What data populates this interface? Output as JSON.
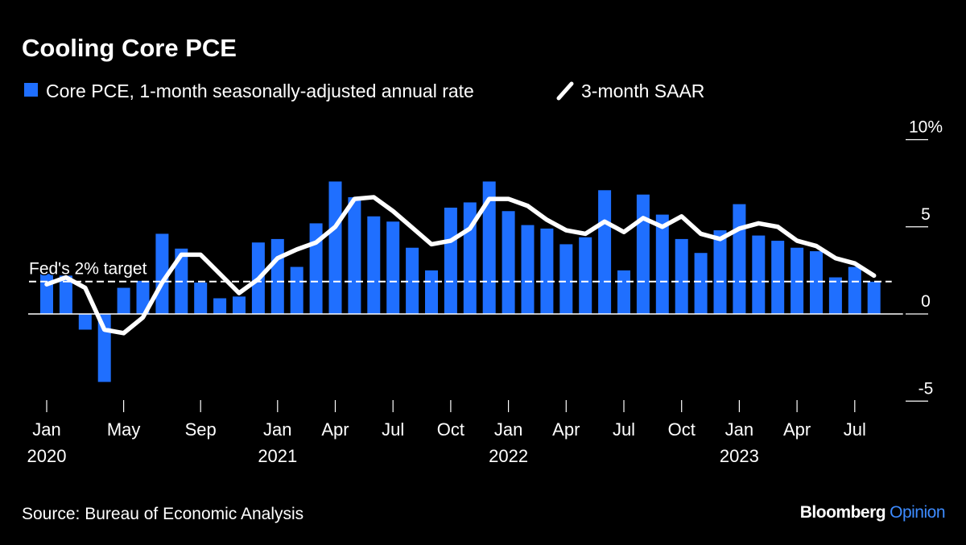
{
  "title": "Cooling Core PCE",
  "source": "Source: Bureau of Economic Analysis",
  "logo": {
    "brand": "Bloomberg",
    "product": "Opinion"
  },
  "colors": {
    "bar": "#1f6fff",
    "line": "#ffffff",
    "background": "#000000",
    "logo_accent": "#3d8bff"
  },
  "legend": [
    {
      "label": "Core PCE, 1-month seasonally-adjusted annual rate",
      "icon": "blue-square"
    },
    {
      "label": "3-month SAAR",
      "icon": "white-slash"
    }
  ],
  "chart_data": {
    "type": "bar+line",
    "title": "Cooling Core PCE",
    "legend_placement": "top-left",
    "grid": false,
    "ylim": [
      -5,
      10
    ],
    "yticks": [
      {
        "value": 10,
        "label": "10%"
      },
      {
        "value": 5,
        "label": "5"
      },
      {
        "value": 0,
        "label": "0"
      },
      {
        "value": -5,
        "label": "-5"
      }
    ],
    "xticks": [
      {
        "month_index": 0,
        "label": "Jan",
        "year": "2020"
      },
      {
        "month_index": 4,
        "label": "May",
        "year": ""
      },
      {
        "month_index": 8,
        "label": "Sep",
        "year": ""
      },
      {
        "month_index": 12,
        "label": "Jan",
        "year": "2021"
      },
      {
        "month_index": 15,
        "label": "Apr",
        "year": ""
      },
      {
        "month_index": 18,
        "label": "Jul",
        "year": ""
      },
      {
        "month_index": 21,
        "label": "Oct",
        "year": ""
      },
      {
        "month_index": 24,
        "label": "Jan",
        "year": "2022"
      },
      {
        "month_index": 27,
        "label": "Apr",
        "year": ""
      },
      {
        "month_index": 30,
        "label": "Jul",
        "year": ""
      },
      {
        "month_index": 33,
        "label": "Oct",
        "year": ""
      },
      {
        "month_index": 36,
        "label": "Jan",
        "year": "2023"
      },
      {
        "month_index": 39,
        "label": "Apr",
        "year": ""
      },
      {
        "month_index": 42,
        "label": "Jul",
        "year": ""
      }
    ],
    "x_start": "2020-01",
    "x_end": "2023-08",
    "reference_line": {
      "value": 2,
      "label": "Fed's 2% target"
    },
    "series": [
      {
        "name": "Core PCE, 1-month seasonally-adjusted annual rate",
        "type": "bar",
        "values": [
          2.3,
          2.2,
          -0.9,
          -3.9,
          1.5,
          1.9,
          4.6,
          3.75,
          1.8,
          0.9,
          1.0,
          4.1,
          4.3,
          2.7,
          5.2,
          7.6,
          6.7,
          5.6,
          5.3,
          3.8,
          2.5,
          6.1,
          6.4,
          7.6,
          5.9,
          5.1,
          4.9,
          4.0,
          4.4,
          7.1,
          2.5,
          6.85,
          5.7,
          4.3,
          3.5,
          4.8,
          6.3,
          4.5,
          4.2,
          3.8,
          3.6,
          2.1,
          2.7,
          1.85
        ]
      },
      {
        "name": "3-month SAAR",
        "type": "line",
        "values": [
          1.7,
          2.1,
          1.5,
          -0.9,
          -1.1,
          -0.2,
          1.8,
          3.4,
          3.4,
          2.3,
          1.2,
          2.0,
          3.2,
          3.7,
          4.1,
          5.0,
          6.6,
          6.7,
          5.9,
          4.95,
          4.0,
          4.2,
          4.9,
          6.6,
          6.6,
          6.2,
          5.4,
          4.8,
          4.6,
          5.3,
          4.7,
          5.5,
          5.0,
          5.6,
          4.6,
          4.3,
          4.9,
          5.2,
          5.0,
          4.2,
          3.9,
          3.2,
          2.9,
          2.2
        ]
      }
    ]
  }
}
